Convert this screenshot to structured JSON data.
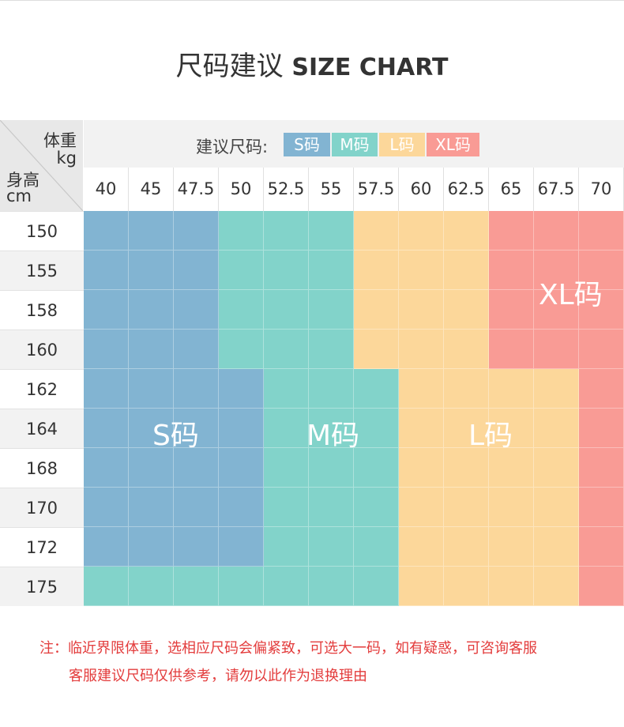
{
  "header": {
    "title_cn": "尺码建议",
    "title_en": "SIZE CHART"
  },
  "corner": {
    "weight_label": "体重",
    "weight_unit": "kg",
    "height_label": "身高",
    "height_unit": "cm"
  },
  "legend": {
    "label": "建议尺码:",
    "items": [
      {
        "label": "S码",
        "color": "#82b4d2"
      },
      {
        "label": "M码",
        "color": "#82d3ca"
      },
      {
        "label": "L码",
        "color": "#fcd79a"
      },
      {
        "label": "XL码",
        "color": "#f99b95"
      }
    ]
  },
  "weights": [
    "40",
    "45",
    "47.5",
    "50",
    "52.5",
    "55",
    "57.5",
    "60",
    "62.5",
    "65",
    "67.5",
    "70"
  ],
  "heights": [
    "150",
    "155",
    "158",
    "160",
    "162",
    "164",
    "168",
    "170",
    "172",
    "175"
  ],
  "size_grid": [
    [
      "S",
      "S",
      "S",
      "M",
      "M",
      "M",
      "L",
      "L",
      "L",
      "XL",
      "XL",
      "XL"
    ],
    [
      "S",
      "S",
      "S",
      "M",
      "M",
      "M",
      "L",
      "L",
      "L",
      "XL",
      "XL",
      "XL"
    ],
    [
      "S",
      "S",
      "S",
      "M",
      "M",
      "M",
      "L",
      "L",
      "L",
      "XL",
      "XL",
      "XL"
    ],
    [
      "S",
      "S",
      "S",
      "M",
      "M",
      "M",
      "L",
      "L",
      "L",
      "XL",
      "XL",
      "XL"
    ],
    [
      "S",
      "S",
      "S",
      "S",
      "M",
      "M",
      "M",
      "L",
      "L",
      "L",
      "L",
      "XL"
    ],
    [
      "S",
      "S",
      "S",
      "S",
      "M",
      "M",
      "M",
      "L",
      "L",
      "L",
      "L",
      "XL"
    ],
    [
      "S",
      "S",
      "S",
      "S",
      "M",
      "M",
      "M",
      "L",
      "L",
      "L",
      "L",
      "XL"
    ],
    [
      "S",
      "S",
      "S",
      "S",
      "M",
      "M",
      "M",
      "L",
      "L",
      "L",
      "L",
      "XL"
    ],
    [
      "S",
      "S",
      "S",
      "S",
      "M",
      "M",
      "M",
      "L",
      "L",
      "L",
      "L",
      "XL"
    ],
    [
      "M",
      "M",
      "M",
      "M",
      "M",
      "M",
      "M",
      "L",
      "L",
      "L",
      "L",
      "XL"
    ]
  ],
  "region_labels": {
    "S": "S码",
    "M": "M码",
    "L": "L码",
    "XL": "XL码"
  },
  "colors": {
    "S": "#82b4d2",
    "M": "#82d3ca",
    "L": "#fcd79a",
    "XL": "#f99b95",
    "note": "#e33c3c"
  },
  "notes": {
    "line1": "注：临近界限体重，选相应尺码会偏紧致，可选大一码，如有疑惑，可咨询客服",
    "line2": "客服建议尺码仅供参考，请勿以此作为退换理由"
  }
}
